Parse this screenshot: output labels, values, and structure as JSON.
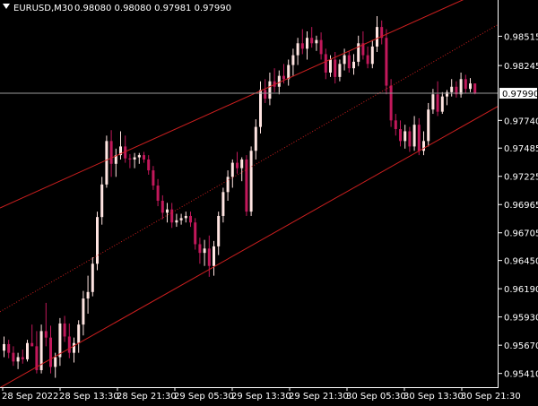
{
  "header": {
    "symbol_timeframe": "EURUSD,M30",
    "ohlc": "0.98080 0.98080 0.97981 0.97990",
    "menu_icon": "triangle-down-icon"
  },
  "colors": {
    "background": "#000000",
    "bull": "#ffe4e1",
    "bear": "#c2185b",
    "channel_line": "#cc1f1f",
    "bid_line": "#9a9a9a",
    "text": "#ffffff",
    "price_tag_bg": "#ffffff"
  },
  "chart_data": {
    "type": "candlestick",
    "title": "EURUSD,M30",
    "y_ticks": [
      "0.98515",
      "0.98245",
      "0.97990",
      "0.97740",
      "0.97485",
      "0.97225",
      "0.96965",
      "0.96705",
      "0.96450",
      "0.96190",
      "0.95930",
      "0.95670",
      "0.95410"
    ],
    "current_price": "0.97990",
    "x_ticks": [
      "28 Sep 2022",
      "28 Sep 13:30",
      "28 Sep 21:30",
      "29 Sep 05:30",
      "29 Sep 13:30",
      "29 Sep 21:30",
      "30 Sep 05:30",
      "30 Sep 13:30",
      "30 Sep 21:30"
    ],
    "ylim": [
      0.953,
      0.987
    ],
    "grid": false,
    "series": [
      {
        "values": [
          [
            0.9562,
            0.9575,
            0.9556,
            0.9568
          ],
          [
            0.9568,
            0.9572,
            0.9555,
            0.956
          ],
          [
            0.956,
            0.9566,
            0.9548,
            0.9552
          ],
          [
            0.9552,
            0.956,
            0.9545,
            0.9556
          ],
          [
            0.9556,
            0.9563,
            0.955,
            0.9554
          ],
          [
            0.9554,
            0.9572,
            0.9552,
            0.9569
          ],
          [
            0.9569,
            0.9586,
            0.9566,
            0.9566
          ],
          [
            0.9566,
            0.958,
            0.9541,
            0.9544
          ],
          [
            0.9544,
            0.9586,
            0.9541,
            0.958
          ],
          [
            0.958,
            0.9606,
            0.9566,
            0.9574
          ],
          [
            0.9574,
            0.9585,
            0.9541,
            0.9547
          ],
          [
            0.9547,
            0.956,
            0.9537,
            0.9556
          ],
          [
            0.9556,
            0.9592,
            0.9548,
            0.9587
          ],
          [
            0.9587,
            0.9594,
            0.957,
            0.9575
          ],
          [
            0.9575,
            0.9587,
            0.9555,
            0.956
          ],
          [
            0.956,
            0.9574,
            0.9551,
            0.9569
          ],
          [
            0.9569,
            0.959,
            0.956,
            0.9586
          ],
          [
            0.9586,
            0.9617,
            0.9576,
            0.961
          ],
          [
            0.961,
            0.9631,
            0.9596,
            0.9616
          ],
          [
            0.9616,
            0.9648,
            0.9612,
            0.9642
          ],
          [
            0.9642,
            0.969,
            0.9636,
            0.9685
          ],
          [
            0.9685,
            0.9722,
            0.9678,
            0.9715
          ],
          [
            0.9715,
            0.976,
            0.9712,
            0.9755
          ],
          [
            0.9755,
            0.9765,
            0.9722,
            0.9734
          ],
          [
            0.9734,
            0.9748,
            0.9722,
            0.9742
          ],
          [
            0.9742,
            0.9764,
            0.9738,
            0.975
          ],
          [
            0.975,
            0.976,
            0.9735,
            0.9739
          ],
          [
            0.9739,
            0.9743,
            0.973,
            0.9738
          ],
          [
            0.9738,
            0.9744,
            0.973,
            0.974
          ],
          [
            0.974,
            0.9744,
            0.9734,
            0.9742
          ],
          [
            0.9742,
            0.9745,
            0.9735,
            0.9738
          ],
          [
            0.9738,
            0.9742,
            0.9724,
            0.9728
          ],
          [
            0.9728,
            0.9732,
            0.971,
            0.9714
          ],
          [
            0.9714,
            0.972,
            0.9695,
            0.97
          ],
          [
            0.97,
            0.9705,
            0.9683,
            0.9689
          ],
          [
            0.9689,
            0.9698,
            0.968,
            0.9692
          ],
          [
            0.9692,
            0.9698,
            0.9675,
            0.968
          ],
          [
            0.968,
            0.9688,
            0.9676,
            0.9682
          ],
          [
            0.9682,
            0.9688,
            0.9678,
            0.9684
          ],
          [
            0.9684,
            0.969,
            0.968,
            0.9686
          ],
          [
            0.9686,
            0.969,
            0.9676,
            0.968
          ],
          [
            0.968,
            0.9684,
            0.9655,
            0.966
          ],
          [
            0.966,
            0.9666,
            0.9642,
            0.9652
          ],
          [
            0.9652,
            0.9664,
            0.964,
            0.9656
          ],
          [
            0.9656,
            0.9668,
            0.963,
            0.964
          ],
          [
            0.964,
            0.9663,
            0.9631,
            0.9658
          ],
          [
            0.9658,
            0.969,
            0.965,
            0.9686
          ],
          [
            0.9686,
            0.9712,
            0.968,
            0.9708
          ],
          [
            0.9708,
            0.9728,
            0.97,
            0.9722
          ],
          [
            0.9722,
            0.9738,
            0.9712,
            0.9735
          ],
          [
            0.9735,
            0.9745,
            0.9725,
            0.973
          ],
          [
            0.973,
            0.974,
            0.9718,
            0.9738
          ],
          [
            0.9738,
            0.9742,
            0.9686,
            0.969
          ],
          [
            0.969,
            0.975,
            0.9686,
            0.9746
          ],
          [
            0.9746,
            0.9775,
            0.9738,
            0.9768
          ],
          [
            0.9768,
            0.981,
            0.9762,
            0.9802
          ],
          [
            0.9802,
            0.9812,
            0.979,
            0.9794
          ],
          [
            0.9794,
            0.9818,
            0.9788,
            0.981
          ],
          [
            0.981,
            0.9822,
            0.98,
            0.9805
          ],
          [
            0.9805,
            0.982,
            0.9798,
            0.9815
          ],
          [
            0.9815,
            0.9826,
            0.9808,
            0.9812
          ],
          [
            0.9812,
            0.983,
            0.9806,
            0.9825
          ],
          [
            0.9825,
            0.984,
            0.9815,
            0.9834
          ],
          [
            0.9834,
            0.985,
            0.9825,
            0.9845
          ],
          [
            0.9845,
            0.9858,
            0.9835,
            0.984
          ],
          [
            0.984,
            0.9856,
            0.983,
            0.985
          ],
          [
            0.985,
            0.986,
            0.9841,
            0.9845
          ],
          [
            0.9845,
            0.9852,
            0.9838,
            0.9848
          ],
          [
            0.9848,
            0.9855,
            0.983,
            0.9835
          ],
          [
            0.9835,
            0.984,
            0.9812,
            0.9818
          ],
          [
            0.9818,
            0.9834,
            0.9814,
            0.983
          ],
          [
            0.983,
            0.9837,
            0.9808,
            0.9814
          ],
          [
            0.9814,
            0.983,
            0.981,
            0.9826
          ],
          [
            0.9826,
            0.984,
            0.982,
            0.9834
          ],
          [
            0.9834,
            0.9838,
            0.9818,
            0.9822
          ],
          [
            0.9822,
            0.9835,
            0.9816,
            0.9828
          ],
          [
            0.9828,
            0.9852,
            0.9824,
            0.9845
          ],
          [
            0.9845,
            0.9856,
            0.983,
            0.9834
          ],
          [
            0.9834,
            0.9842,
            0.9822,
            0.9826
          ],
          [
            0.9826,
            0.9848,
            0.9822,
            0.9842
          ],
          [
            0.9842,
            0.987,
            0.9837,
            0.986
          ],
          [
            0.986,
            0.9866,
            0.9844,
            0.985
          ],
          [
            0.985,
            0.9858,
            0.9798,
            0.9806
          ],
          [
            0.9806,
            0.9812,
            0.9768,
            0.9774
          ],
          [
            0.9774,
            0.978,
            0.976,
            0.9766
          ],
          [
            0.9766,
            0.9774,
            0.975,
            0.9755
          ],
          [
            0.9755,
            0.977,
            0.9748,
            0.9764
          ],
          [
            0.9764,
            0.9768,
            0.9745,
            0.975
          ],
          [
            0.975,
            0.9778,
            0.9746,
            0.977
          ],
          [
            0.977,
            0.9776,
            0.9742,
            0.9746
          ],
          [
            0.9746,
            0.9764,
            0.9742,
            0.9755
          ],
          [
            0.9755,
            0.979,
            0.975,
            0.9784
          ],
          [
            0.9784,
            0.9803,
            0.978,
            0.9798
          ],
          [
            0.9798,
            0.981,
            0.9778,
            0.9782
          ],
          [
            0.9782,
            0.98,
            0.978,
            0.9796
          ],
          [
            0.9796,
            0.9802,
            0.9788,
            0.98
          ],
          [
            0.98,
            0.9812,
            0.9796,
            0.9805
          ],
          [
            0.9805,
            0.981,
            0.9795,
            0.9798
          ],
          [
            0.9798,
            0.9818,
            0.9795,
            0.9812
          ],
          [
            0.9812,
            0.9816,
            0.9799,
            0.9803
          ],
          [
            0.9803,
            0.9813,
            0.98,
            0.9808
          ],
          [
            0.9808,
            0.9808,
            0.9798,
            0.9799
          ]
        ]
      }
    ],
    "channel": {
      "upper": [
        0.9695,
        0.989
      ],
      "middle": [
        0.96,
        0.985
      ],
      "lower": [
        0.953,
        0.9775
      ],
      "middle_style": "dotted"
    }
  }
}
